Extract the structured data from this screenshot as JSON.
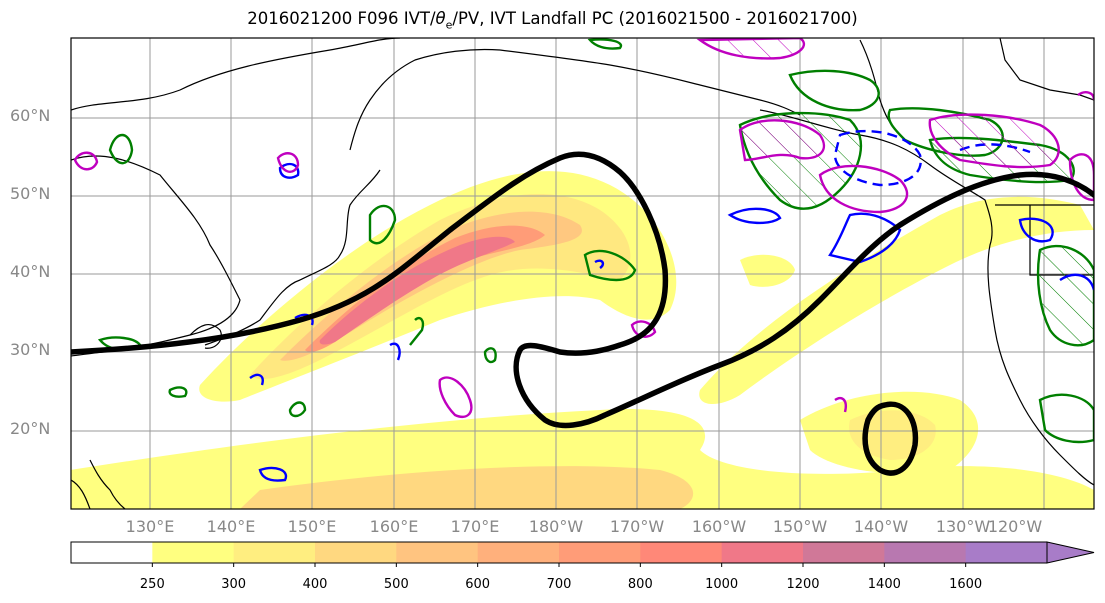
{
  "title_prefix": "2016021200 F096 IVT/",
  "title_theta": "θ",
  "title_sub": "e",
  "title_suffix": "/PV, IVT Landfall PC (2016021500 - 2016021700)",
  "lat_labels": [
    "60°N",
    "50°N",
    "40°N",
    "30°N",
    "20°N"
  ],
  "lon_labels": [
    "130°E",
    "140°E",
    "150°E",
    "160°E",
    "170°E",
    "180°W",
    "170°W",
    "160°W",
    "150°W",
    "140°W",
    "130°W",
    "120°W"
  ],
  "colorbar": {
    "levels": [
      "250",
      "300",
      "400",
      "500",
      "600",
      "700",
      "800",
      "1000",
      "1200",
      "1400",
      "1600"
    ],
    "colors": [
      "#ffffff",
      "#ffff80",
      "#ffee80",
      "#ffd880",
      "#ffc480",
      "#ffb07c",
      "#ff9c78",
      "#ff8878",
      "#f07888",
      "#d07898",
      "#b878b0",
      "#a87cc8"
    ]
  },
  "colors": {
    "pv_contour": "#007f00",
    "theta_e_contour": "#0000ff",
    "landfall_contour": "#bf00bf",
    "pc_contour": "#000000"
  }
}
